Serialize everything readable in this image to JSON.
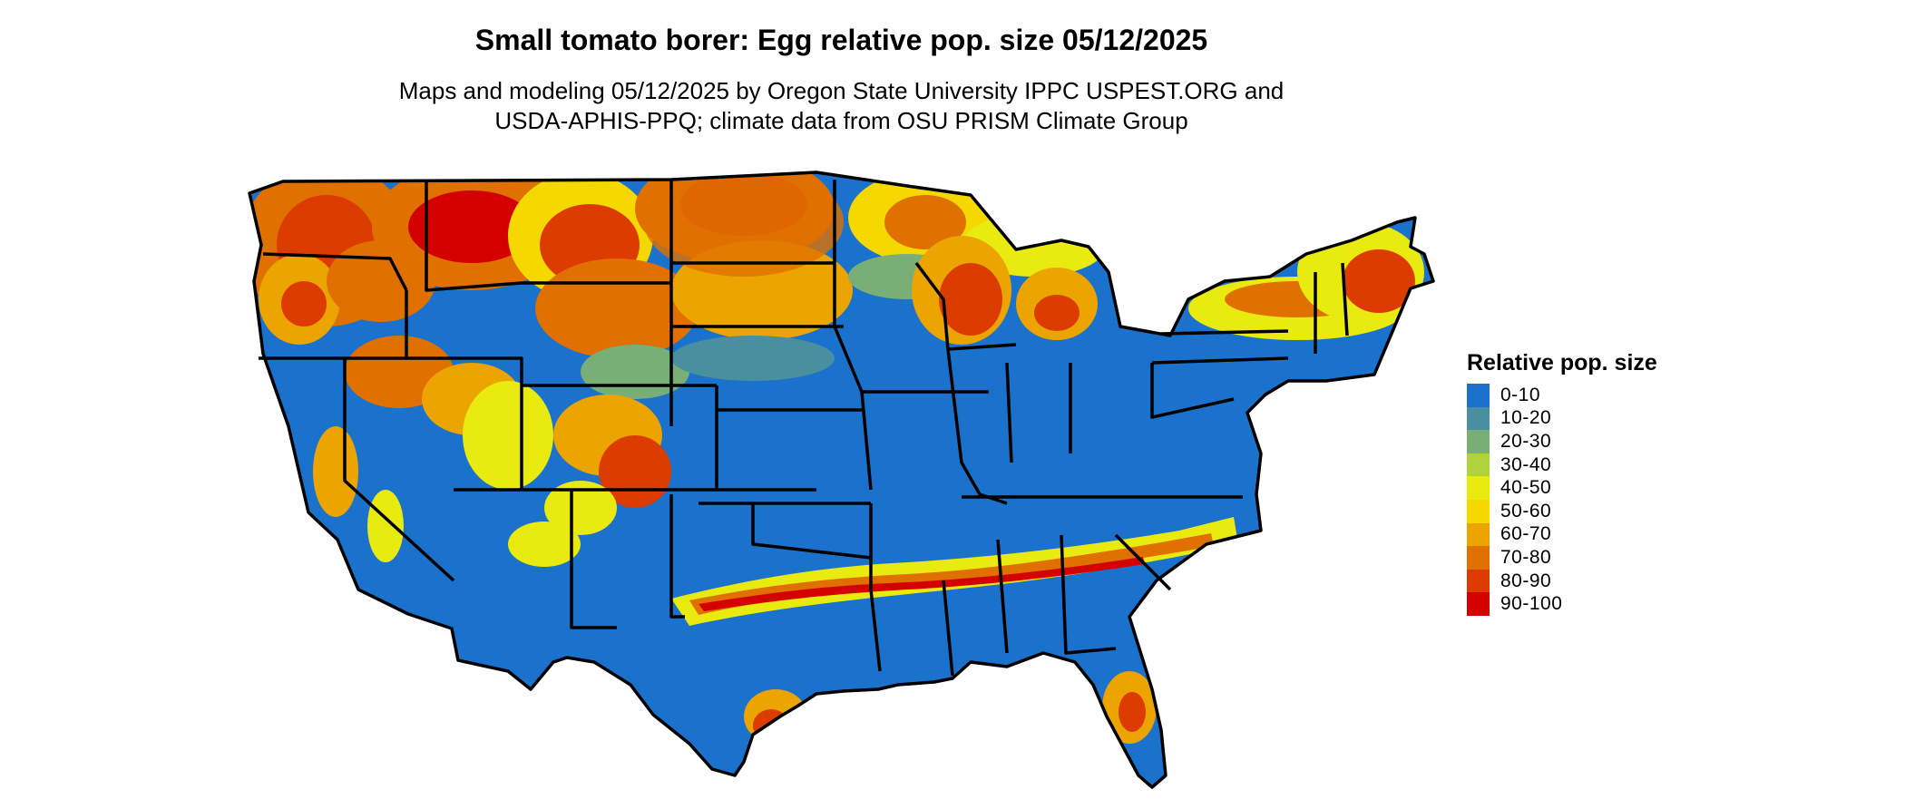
{
  "title": "Small tomato borer: Egg relative pop. size 05/12/2025",
  "subtitle": [
    "Maps and modeling 05/12/2025 by Oregon State University IPPC USPEST.ORG and",
    "USDA-APHIS-PPQ; climate data from OSU PRISM Climate Group"
  ],
  "legend": {
    "title": "Relative pop. size",
    "items": [
      {
        "label": "0-10",
        "color": "#1a72cc"
      },
      {
        "label": "10-20",
        "color": "#4a8fa0"
      },
      {
        "label": "20-30",
        "color": "#79ae76"
      },
      {
        "label": "30-40",
        "color": "#b0d23c"
      },
      {
        "label": "40-50",
        "color": "#e8ea10"
      },
      {
        "label": "50-60",
        "color": "#f5d800"
      },
      {
        "label": "60-70",
        "color": "#eba400"
      },
      {
        "label": "70-80",
        "color": "#e07000"
      },
      {
        "label": "80-90",
        "color": "#dc3c00"
      },
      {
        "label": "90-100",
        "color": "#d40000"
      }
    ]
  },
  "map": {
    "region": "contiguous-united-states",
    "boundaries": "state-lines",
    "border_color": "#000000"
  }
}
